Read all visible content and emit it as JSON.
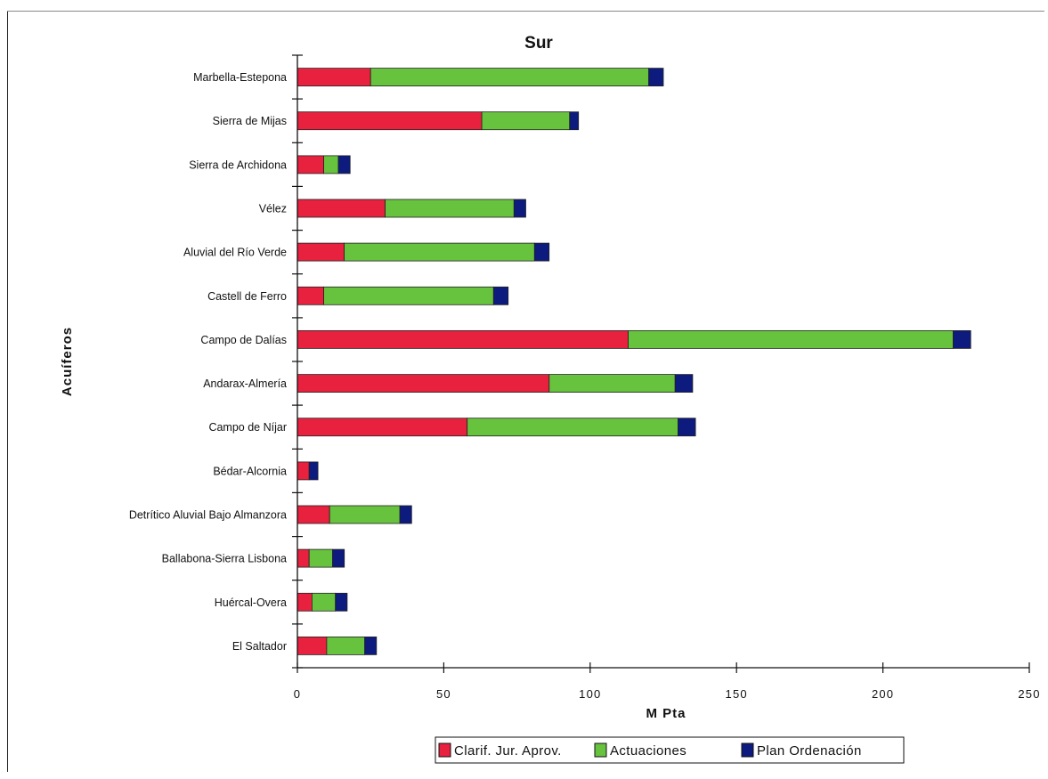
{
  "chart_data": {
    "type": "bar",
    "orientation": "horizontal",
    "stacked": true,
    "title": "Sur",
    "xlabel": "M Pta",
    "ylabel": "Acuíferos",
    "xlim": [
      0,
      250
    ],
    "xticks": [
      0,
      50,
      100,
      150,
      200,
      250
    ],
    "grid": false,
    "legend_position": "bottom",
    "categories": [
      "Marbella-Estepona",
      "Sierra de Mijas",
      "Sierra de Archidona",
      "Vélez",
      "Aluvial del Río Verde",
      "Castell de Ferro",
      "Campo de Dalías",
      "Andarax-Almería",
      "Campo de Níjar",
      "Bédar-Alcornia",
      "Detrítico Aluvial Bajo Almanzora",
      "Ballabona-Sierra Lisbona",
      "Huércal-Overa",
      "El Saltador"
    ],
    "series": [
      {
        "name": "Clarif. Jur. Aprov.",
        "color": "#e8213f",
        "values": [
          25,
          63,
          9,
          30,
          16,
          9,
          113,
          86,
          58,
          4,
          11,
          4,
          5,
          10
        ]
      },
      {
        "name": "Actuaciones",
        "color": "#67c23e",
        "values": [
          95,
          30,
          5,
          44,
          65,
          58,
          111,
          43,
          72,
          0,
          24,
          8,
          8,
          13
        ]
      },
      {
        "name": "Plan Ordenación",
        "color": "#0d1a7e",
        "values": [
          5,
          3,
          4,
          4,
          5,
          5,
          6,
          6,
          6,
          3,
          4,
          4,
          4,
          4
        ]
      }
    ]
  }
}
